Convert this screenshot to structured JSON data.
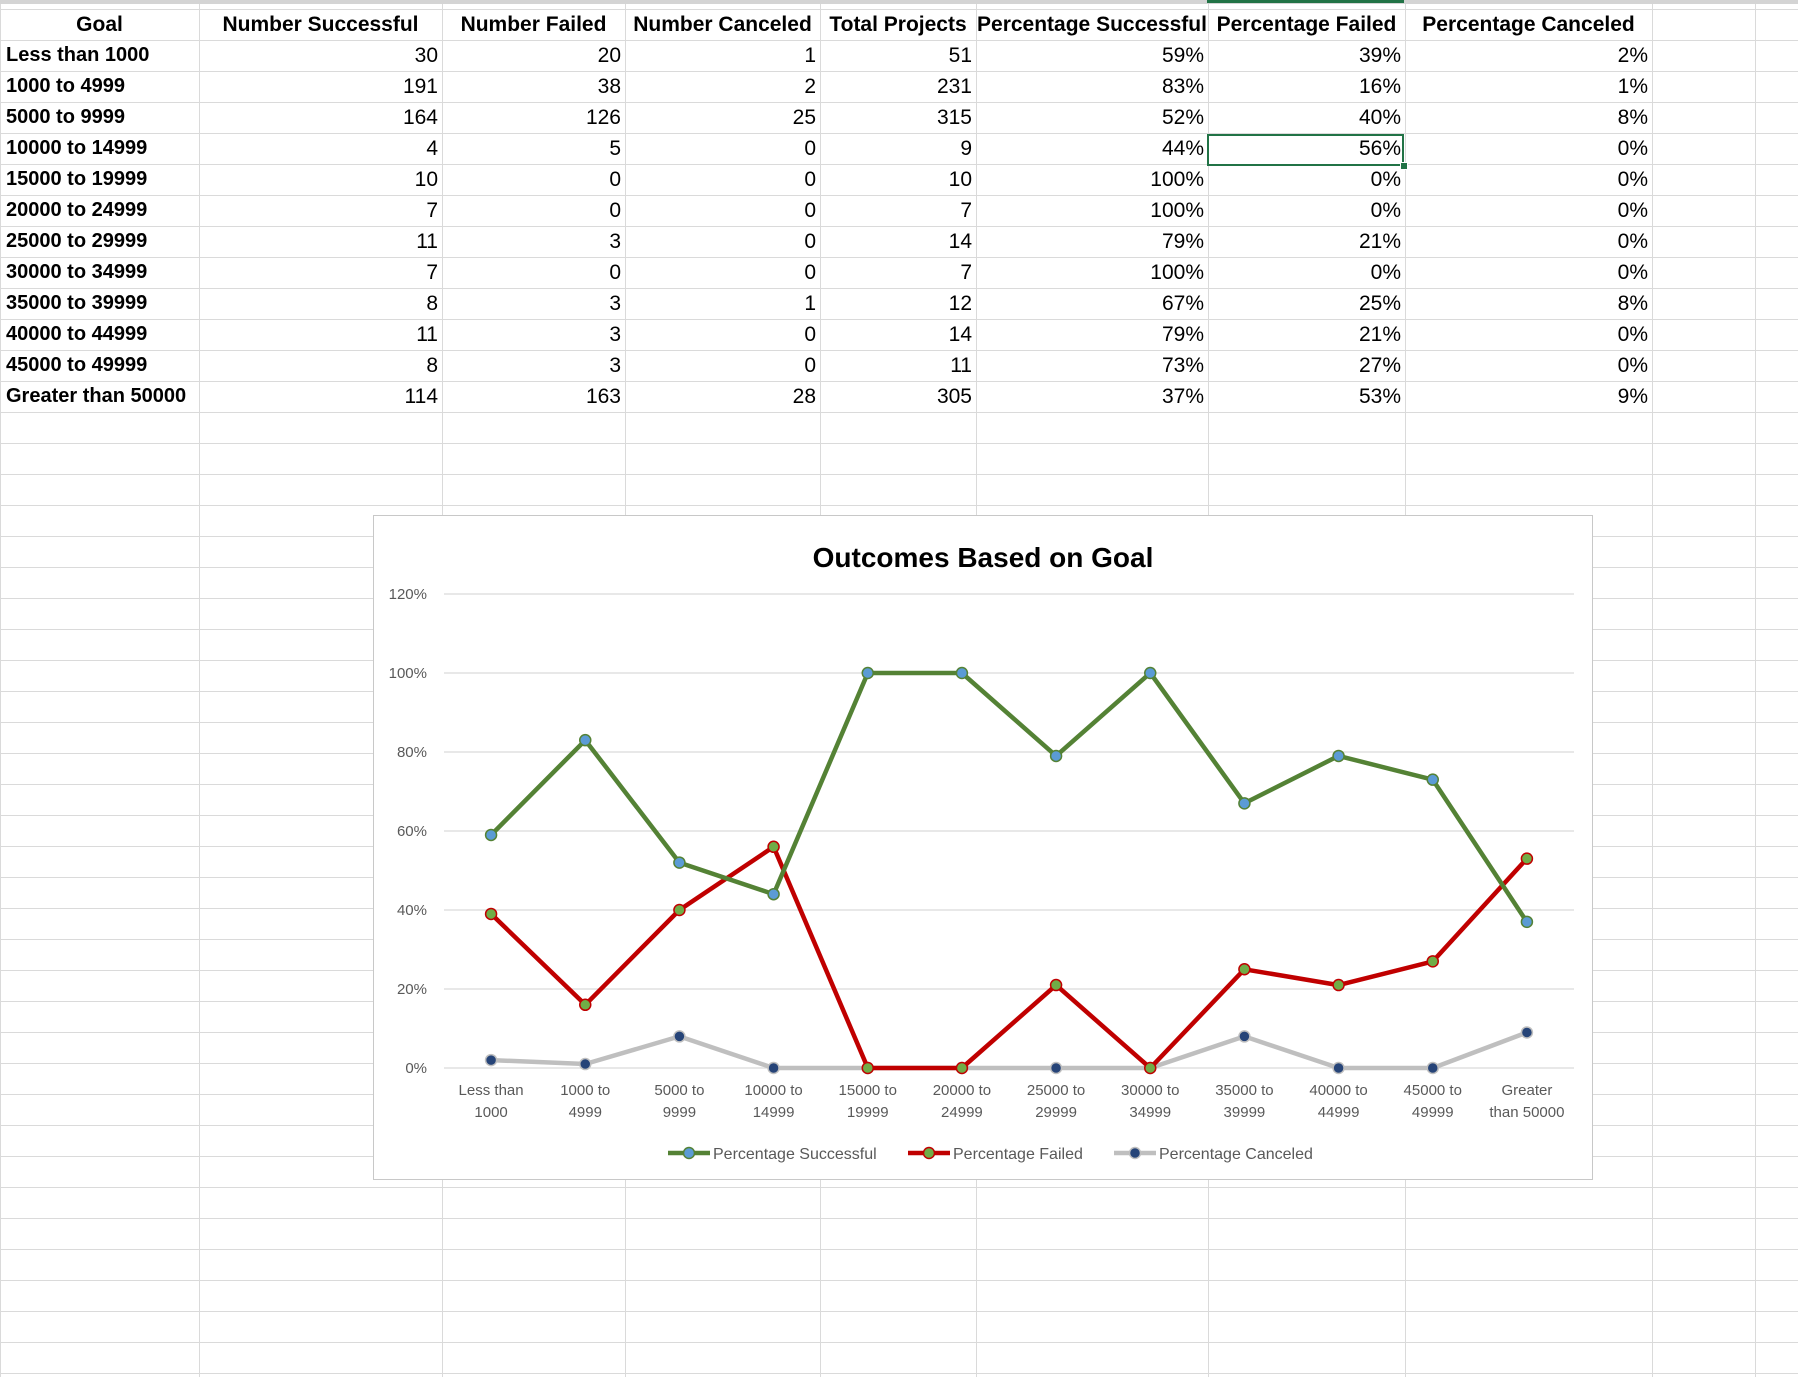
{
  "table": {
    "headers": [
      "Goal",
      "Number Successful",
      "Number Failed",
      "Number Canceled",
      "Total Projects",
      "Percentage Successful",
      "Percentage Failed",
      "Percentage Canceled"
    ],
    "rows": [
      [
        "Less than 1000",
        "30",
        "20",
        "1",
        "51",
        "59%",
        "39%",
        "2%"
      ],
      [
        "1000 to 4999",
        "191",
        "38",
        "2",
        "231",
        "83%",
        "16%",
        "1%"
      ],
      [
        "5000 to 9999",
        "164",
        "126",
        "25",
        "315",
        "52%",
        "40%",
        "8%"
      ],
      [
        "10000 to 14999",
        "4",
        "5",
        "0",
        "9",
        "44%",
        "56%",
        "0%"
      ],
      [
        "15000 to 19999",
        "10",
        "0",
        "0",
        "10",
        "100%",
        "0%",
        "0%"
      ],
      [
        "20000 to 24999",
        "7",
        "0",
        "0",
        "7",
        "100%",
        "0%",
        "0%"
      ],
      [
        "25000 to 29999",
        "11",
        "3",
        "0",
        "14",
        "79%",
        "21%",
        "0%"
      ],
      [
        "30000 to 34999",
        "7",
        "0",
        "0",
        "7",
        "100%",
        "0%",
        "0%"
      ],
      [
        "35000 to 39999",
        "8",
        "3",
        "1",
        "12",
        "67%",
        "25%",
        "8%"
      ],
      [
        "40000 to 44999",
        "11",
        "3",
        "0",
        "14",
        "79%",
        "21%",
        "0%"
      ],
      [
        "45000 to 49999",
        "8",
        "3",
        "0",
        "11",
        "73%",
        "27%",
        "0%"
      ],
      [
        "Greater than 50000",
        "114",
        "163",
        "28",
        "305",
        "37%",
        "53%",
        "9%"
      ]
    ],
    "selected_cell": "Percentage Failed / 10000 to 14999"
  },
  "chart_data": {
    "type": "line",
    "title": "Outcomes Based on Goal",
    "categories": [
      [
        "Less than",
        "1000"
      ],
      [
        "1000 to",
        "4999"
      ],
      [
        "5000 to",
        "9999"
      ],
      [
        "10000 to",
        "14999"
      ],
      [
        "15000 to",
        "19999"
      ],
      [
        "20000 to",
        "24999"
      ],
      [
        "25000 to",
        "29999"
      ],
      [
        "30000 to",
        "34999"
      ],
      [
        "35000 to",
        "39999"
      ],
      [
        "40000 to",
        "44999"
      ],
      [
        "45000 to",
        "49999"
      ],
      [
        "Greater",
        "than 50000"
      ]
    ],
    "series": [
      {
        "name": "Percentage Successful",
        "color": "#548235",
        "marker": "#5b9bd5",
        "values": [
          59,
          83,
          52,
          44,
          100,
          100,
          79,
          100,
          67,
          79,
          73,
          37
        ]
      },
      {
        "name": "Percentage Failed",
        "color": "#c00000",
        "marker": "#70ad47",
        "values": [
          39,
          16,
          40,
          56,
          0,
          0,
          21,
          0,
          25,
          21,
          27,
          53
        ]
      },
      {
        "name": "Percentage Canceled",
        "color": "#bfbfbf",
        "marker": "#264478",
        "values": [
          2,
          1,
          8,
          0,
          0,
          0,
          0,
          0,
          8,
          0,
          0,
          9
        ]
      }
    ],
    "yticks": [
      "0%",
      "20%",
      "40%",
      "60%",
      "80%",
      "100%",
      "120%"
    ],
    "ylim": [
      0,
      120
    ],
    "grid": true,
    "legend": "bottom"
  }
}
